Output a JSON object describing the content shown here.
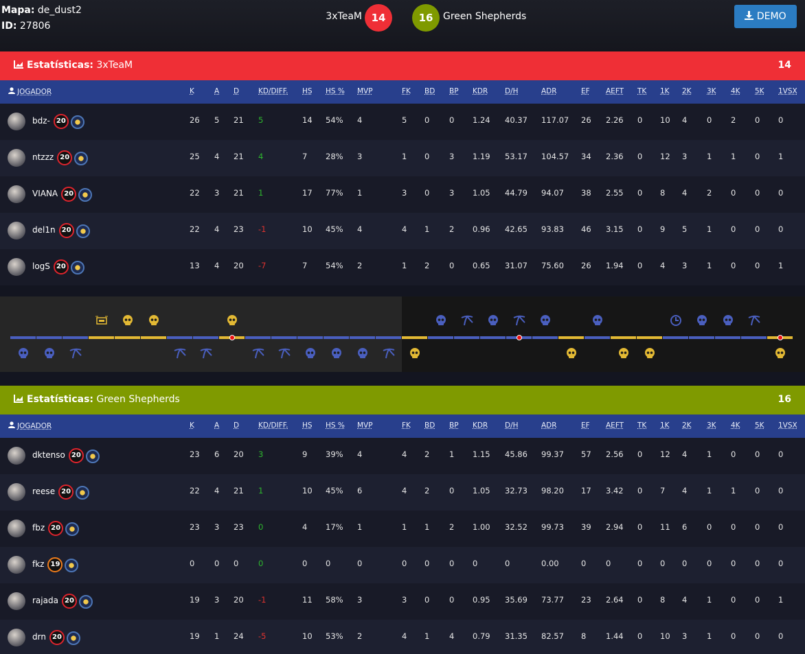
{
  "header": {
    "map_label": "Mapa:",
    "map": "de_dust2",
    "id_label": "ID:",
    "id": "27806",
    "team1": "3xTeaM",
    "score1": "14",
    "score2": "16",
    "team2": "Green Shepherds",
    "demo": "DEMO"
  },
  "player_header": "JOGADOR",
  "columns": [
    "K",
    "A",
    "D",
    "KD/DIFF.",
    "HS",
    "HS %",
    "MVP",
    "FK",
    "BD",
    "BP",
    "KDR",
    "D/H",
    "ADR",
    "EF",
    "AEFT",
    "TK",
    "1K",
    "2K",
    "3K",
    "4K",
    "5K",
    "1VSX"
  ],
  "teams": [
    {
      "label": "Estatísticas:",
      "name": "3xTeaM",
      "score": "14",
      "color": "#ef2f36",
      "players": [
        {
          "name": "bdz-",
          "level": "20",
          "stats": [
            "26",
            "5",
            "21",
            "5",
            "14",
            "54%",
            "4",
            "5",
            "0",
            "0",
            "1.24",
            "40.37",
            "117.07",
            "26",
            "2.26",
            "0",
            "10",
            "4",
            "0",
            "2",
            "0",
            "0"
          ]
        },
        {
          "name": "ntzzz",
          "level": "20",
          "stats": [
            "25",
            "4",
            "21",
            "4",
            "7",
            "28%",
            "3",
            "1",
            "0",
            "3",
            "1.19",
            "53.17",
            "104.57",
            "34",
            "2.36",
            "0",
            "12",
            "3",
            "1",
            "1",
            "0",
            "1"
          ]
        },
        {
          "name": "VIANA",
          "level": "20",
          "stats": [
            "22",
            "3",
            "21",
            "1",
            "17",
            "77%",
            "1",
            "3",
            "0",
            "3",
            "1.05",
            "44.79",
            "94.07",
            "38",
            "2.55",
            "0",
            "8",
            "4",
            "2",
            "0",
            "0",
            "0"
          ]
        },
        {
          "name": "del1n",
          "level": "20",
          "stats": [
            "22",
            "4",
            "23",
            "-1",
            "10",
            "45%",
            "4",
            "4",
            "1",
            "2",
            "0.96",
            "42.65",
            "93.83",
            "46",
            "3.15",
            "0",
            "9",
            "5",
            "1",
            "0",
            "0",
            "0"
          ]
        },
        {
          "name": "logS",
          "level": "20",
          "stats": [
            "13",
            "4",
            "20",
            "-7",
            "7",
            "54%",
            "2",
            "1",
            "2",
            "0",
            "0.65",
            "31.07",
            "75.60",
            "26",
            "1.94",
            "0",
            "4",
            "3",
            "1",
            "0",
            "0",
            "1"
          ]
        }
      ]
    },
    {
      "label": "Estatísticas:",
      "name": "Green Shepherds",
      "score": "16",
      "color": "#7f9a00",
      "players": [
        {
          "name": "dktenso",
          "level": "20",
          "stats": [
            "23",
            "6",
            "20",
            "3",
            "9",
            "39%",
            "4",
            "4",
            "2",
            "1",
            "1.15",
            "45.86",
            "99.37",
            "57",
            "2.56",
            "0",
            "12",
            "4",
            "1",
            "0",
            "0",
            "0"
          ]
        },
        {
          "name": "reese",
          "level": "20",
          "stats": [
            "22",
            "4",
            "21",
            "1",
            "10",
            "45%",
            "6",
            "4",
            "2",
            "0",
            "1.05",
            "32.73",
            "98.20",
            "17",
            "3.42",
            "0",
            "7",
            "4",
            "1",
            "1",
            "0",
            "0"
          ]
        },
        {
          "name": "fbz",
          "level": "20",
          "stats": [
            "23",
            "3",
            "23",
            "0",
            "4",
            "17%",
            "1",
            "1",
            "1",
            "2",
            "1.00",
            "32.52",
            "99.73",
            "39",
            "2.94",
            "0",
            "11",
            "6",
            "0",
            "0",
            "0",
            "0"
          ]
        },
        {
          "name": "fkz",
          "level": "19",
          "stats": [
            "0",
            "0",
            "0",
            "0",
            "0",
            "0",
            "0",
            "0",
            "0",
            "0",
            "0",
            "0",
            "0.00",
            "0",
            "0",
            "0",
            "0",
            "0",
            "0",
            "0",
            "0",
            "0"
          ]
        },
        {
          "name": "rajada",
          "level": "20",
          "stats": [
            "19",
            "3",
            "20",
            "-1",
            "11",
            "58%",
            "3",
            "3",
            "0",
            "0",
            "0.95",
            "35.69",
            "73.77",
            "23",
            "2.64",
            "0",
            "8",
            "4",
            "1",
            "0",
            "0",
            "1"
          ]
        },
        {
          "name": "drn",
          "level": "20",
          "stats": [
            "19",
            "1",
            "24",
            "-5",
            "10",
            "53%",
            "2",
            "4",
            "1",
            "4",
            "0.79",
            "31.35",
            "82.57",
            "8",
            "1.44",
            "0",
            "10",
            "3",
            "1",
            "0",
            "0",
            "0"
          ]
        }
      ]
    }
  ],
  "timeline": {
    "rounds": [
      {
        "winner": "ct",
        "icon": "skull"
      },
      {
        "winner": "ct",
        "icon": "skull"
      },
      {
        "winner": "ct",
        "icon": "defuse"
      },
      {
        "winner": "t",
        "icon": "bomb"
      },
      {
        "winner": "t",
        "icon": "skull"
      },
      {
        "winner": "t",
        "icon": "skull"
      },
      {
        "winner": "ct",
        "icon": "defuse"
      },
      {
        "winner": "ct",
        "icon": "defuse"
      },
      {
        "winner": "t",
        "icon": "skull",
        "planted": true
      },
      {
        "winner": "ct",
        "icon": "defuse"
      },
      {
        "winner": "ct",
        "icon": "defuse"
      },
      {
        "winner": "ct",
        "icon": "skull"
      },
      {
        "winner": "ct",
        "icon": "skull"
      },
      {
        "winner": "ct",
        "icon": "skull"
      },
      {
        "winner": "ct",
        "icon": "defuse"
      },
      {
        "winner": "t",
        "icon": "skull"
      },
      {
        "winner": "ct",
        "icon": "skull"
      },
      {
        "winner": "ct",
        "icon": "defuse"
      },
      {
        "winner": "ct",
        "icon": "skull"
      },
      {
        "winner": "ct",
        "icon": "defuse",
        "planted": true
      },
      {
        "winner": "ct",
        "icon": "skull"
      },
      {
        "winner": "t",
        "icon": "skull"
      },
      {
        "winner": "ct",
        "icon": "skull"
      },
      {
        "winner": "t",
        "icon": "skull"
      },
      {
        "winner": "t",
        "icon": "skull"
      },
      {
        "winner": "ct",
        "icon": "time"
      },
      {
        "winner": "ct",
        "icon": "skull"
      },
      {
        "winner": "ct",
        "icon": "skull"
      },
      {
        "winner": "ct",
        "icon": "defuse"
      },
      {
        "winner": "t",
        "icon": "skull",
        "planted": true
      }
    ]
  }
}
